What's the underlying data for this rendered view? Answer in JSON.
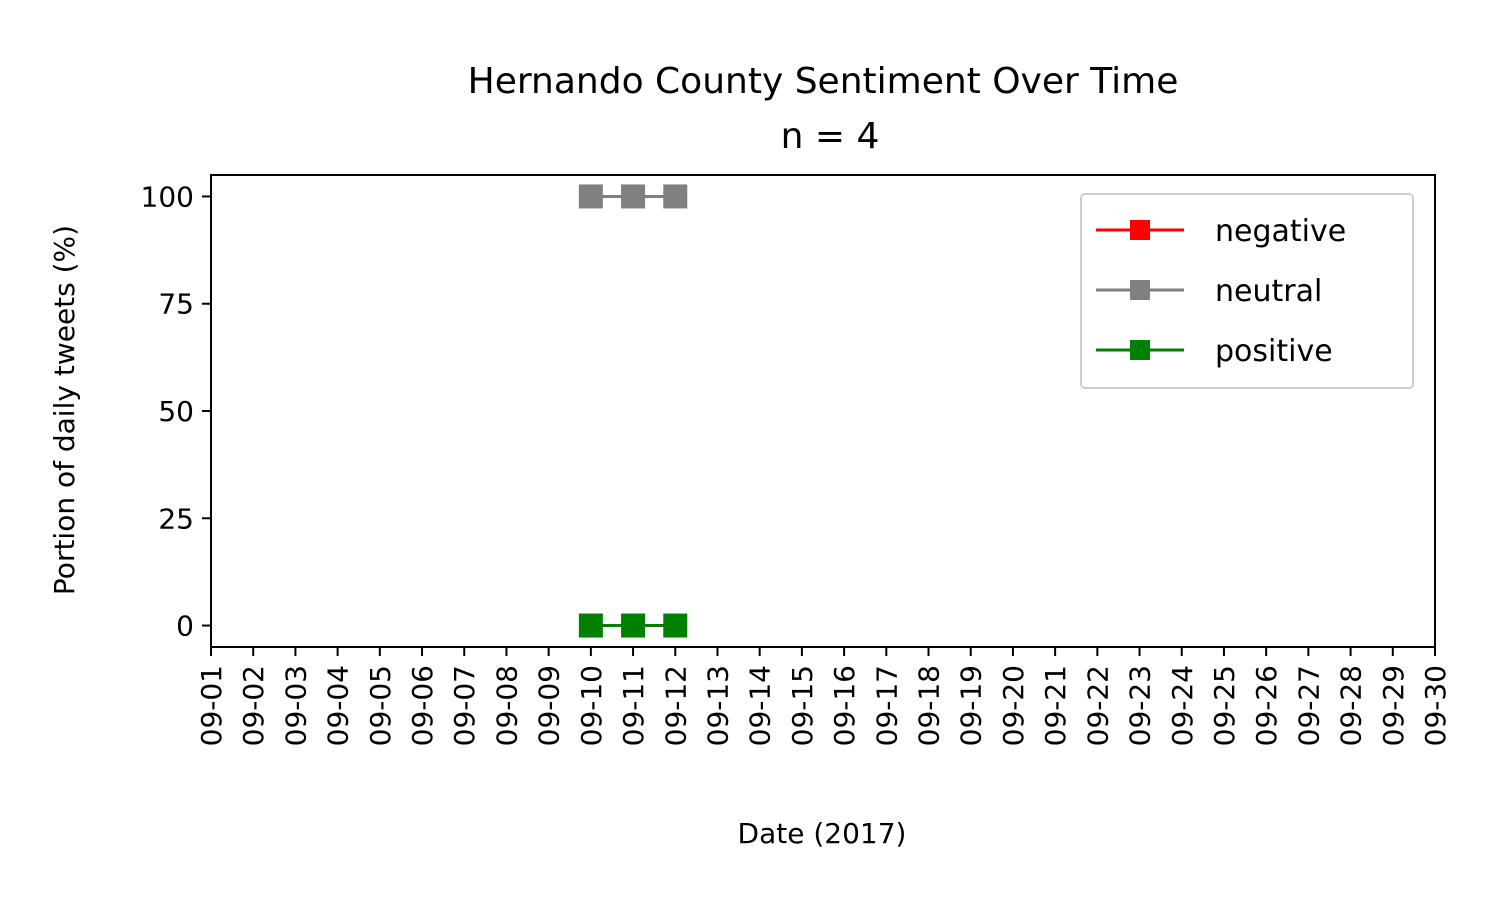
{
  "chart_data": {
    "type": "line",
    "title": "Hernando County Sentiment Over Time",
    "subtitle": "n = 4",
    "xlabel": "Date (2017)",
    "ylabel": "Portion of daily tweets (%)",
    "ylim": [
      -5,
      105
    ],
    "yticks": [
      0,
      25,
      50,
      75,
      100
    ],
    "ytick_labels": [
      "0",
      "25",
      "50",
      "75",
      "100"
    ],
    "categories": [
      "09-01",
      "09-02",
      "09-03",
      "09-04",
      "09-05",
      "09-06",
      "09-07",
      "09-08",
      "09-09",
      "09-10",
      "09-11",
      "09-12",
      "09-13",
      "09-14",
      "09-15",
      "09-16",
      "09-17",
      "09-18",
      "09-19",
      "09-20",
      "09-21",
      "09-22",
      "09-23",
      "09-24",
      "09-25",
      "09-26",
      "09-27",
      "09-28",
      "09-29",
      "09-30"
    ],
    "grid": false,
    "legend_position": "top-right",
    "series": [
      {
        "name": "negative",
        "color": "#ff0000",
        "x": [],
        "values": []
      },
      {
        "name": "neutral",
        "color": "#808080",
        "x": [
          "09-10",
          "09-11",
          "09-12"
        ],
        "values": [
          100,
          100,
          100
        ]
      },
      {
        "name": "positive",
        "color": "#008000",
        "x": [
          "09-10",
          "09-11",
          "09-12"
        ],
        "values": [
          0,
          0,
          0
        ]
      }
    ]
  }
}
